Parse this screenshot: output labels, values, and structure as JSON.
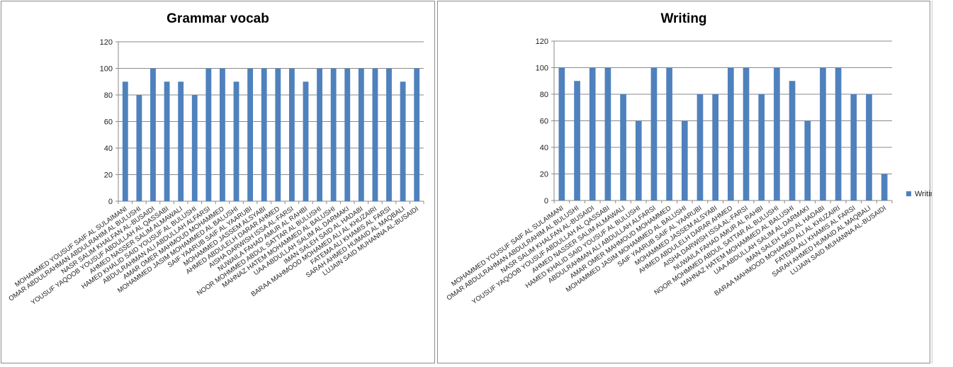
{
  "students": [
    "MOHAMMED YOUSUF SAIF  AL SULAIMANI",
    "OMAR ABDULRAHMAN ABDULRAHIM AL BULUSHI",
    "NASR SALIM KHALFAN AL-BUSAIDI",
    "YOUSUF YAQOOB YOUSUF ABDULLAH AL QASSABI",
    "AHMED NASSER SALIM ALMAWALI",
    "HAMED KHALID SAID YOUSUF AL BULUSHI",
    "ABDULRAHMAN ALI ABDULLAH  ALFARSI",
    "AMAR OMER MAHMOUD MOHAMMED",
    "MOHAMMED JASIM MOHAMMED AL BALUSHI",
    "SAIF YAARUB SAIF AL YAARUBI",
    "MOHAMMED JASSEM ALSYABI",
    "AHMED ABDULELH DARAR AHMED",
    "AISHA DARWISH ISSA AL-FARSI",
    "NUWAILA FAHAD AMUR AL RAHBI",
    "NOOR MOHMMED ABDUL SATTAR  AL BULUSHI",
    "MAHNAZ HATEM MOHAMMED AL BALUSHI",
    "UAA ABDULLAH SALIM AL DARMAKI",
    "IMAN SALEH SAID AL HADABI",
    "BARAA MAHMOOD MOHAMED ALI AL KHUZAIRI",
    "FATEMA ALI KHAMIS AL FARSI",
    "SARAH AHMED HUMAID AL MAQBALI",
    "LUJAIN SAID MUHANNA AL-BUSAIDI"
  ],
  "chart_data": [
    {
      "type": "bar",
      "title": "Grammar vocab",
      "ylim": [
        0,
        120
      ],
      "yticks": [
        "0",
        "20",
        "40",
        "60",
        "80",
        "100",
        "120"
      ],
      "grid": true,
      "legend": "none",
      "bar_color": "#4f81bd",
      "series": [
        {
          "values": [
            90,
            80,
            100,
            90,
            90,
            80,
            100,
            100,
            90,
            100,
            100,
            100,
            100,
            90,
            100,
            100,
            100,
            100,
            100,
            100,
            90,
            100
          ]
        }
      ]
    },
    {
      "type": "bar",
      "title": "Writing",
      "ylim": [
        0,
        120
      ],
      "yticks": [
        "0",
        "20",
        "40",
        "60",
        "80",
        "100",
        "120"
      ],
      "grid": true,
      "legend": "right",
      "bar_color": "#4f81bd",
      "series": [
        {
          "name": "Writing",
          "values": [
            100,
            90,
            100,
            100,
            80,
            60,
            100,
            100,
            60,
            80,
            80,
            100,
            100,
            80,
            100,
            90,
            60,
            100,
            100,
            80,
            80,
            20
          ]
        }
      ]
    }
  ]
}
